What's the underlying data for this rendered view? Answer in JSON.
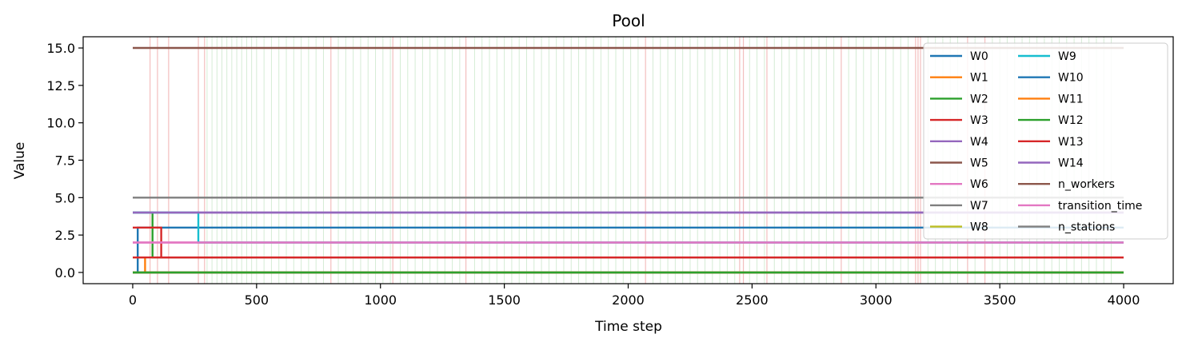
{
  "chart_data": {
    "type": "line",
    "title": "Pool",
    "xlabel": "Time step",
    "ylabel": "Value",
    "xlim": [
      -200,
      4200
    ],
    "ylim": [
      -0.75,
      15.75
    ],
    "xticks": [
      0,
      500,
      1000,
      1500,
      2000,
      2500,
      3000,
      3500,
      4000
    ],
    "yticks": [
      0.0,
      2.5,
      5.0,
      7.5,
      10.0,
      12.5,
      15.0
    ],
    "xtick_labels": [
      "0",
      "500",
      "1000",
      "1500",
      "2000",
      "2500",
      "3000",
      "3500",
      "4000"
    ],
    "ytick_labels": [
      "0.0",
      "2.5",
      "5.0",
      "7.5",
      "10.0",
      "12.5",
      "15.0"
    ],
    "grid": false,
    "legend_position": "top-right",
    "legend_columns": 2,
    "series": [
      {
        "name": "W0",
        "color": "#1f77b4",
        "x": [
          0,
          20,
          20,
          4000
        ],
        "y": [
          0,
          0,
          3,
          3
        ]
      },
      {
        "name": "W1",
        "color": "#ff7f0e",
        "x": [
          0,
          50,
          50,
          4000
        ],
        "y": [
          1,
          1,
          0,
          0
        ]
      },
      {
        "name": "W2",
        "color": "#2ca02c",
        "x": [
          0,
          80,
          80,
          4000
        ],
        "y": [
          4,
          4,
          1,
          1
        ]
      },
      {
        "name": "W3",
        "color": "#d62728",
        "x": [
          0,
          115,
          115,
          4000
        ],
        "y": [
          3,
          3,
          1,
          1
        ]
      },
      {
        "name": "W4",
        "color": "#9467bd",
        "x": [
          0,
          4000
        ],
        "y": [
          4,
          4
        ]
      },
      {
        "name": "W5",
        "color": "#8c564b",
        "x": [
          0,
          4000
        ],
        "y": [
          0,
          0
        ]
      },
      {
        "name": "W6",
        "color": "#e377c2",
        "x": [
          0,
          4000
        ],
        "y": [
          2,
          2
        ]
      },
      {
        "name": "W7",
        "color": "#7f7f7f",
        "x": [
          0,
          4000
        ],
        "y": [
          0,
          0
        ]
      },
      {
        "name": "W8",
        "color": "#bcbd22",
        "x": [
          0,
          4000
        ],
        "y": [
          0,
          0
        ]
      },
      {
        "name": "W9",
        "color": "#17becf",
        "x": [
          0,
          265,
          265,
          4000
        ],
        "y": [
          4,
          4,
          2,
          2
        ]
      },
      {
        "name": "W10",
        "color": "#1f77b4",
        "x": [
          0,
          4000
        ],
        "y": [
          0,
          0
        ]
      },
      {
        "name": "W11",
        "color": "#ff7f0e",
        "x": [
          0,
          4000
        ],
        "y": [
          0,
          0
        ]
      },
      {
        "name": "W12",
        "color": "#2ca02c",
        "x": [
          0,
          4000
        ],
        "y": [
          0,
          0
        ]
      },
      {
        "name": "W13",
        "color": "#d62728",
        "x": [
          0,
          4000
        ],
        "y": [
          1,
          1
        ]
      },
      {
        "name": "W14",
        "color": "#9467bd",
        "x": [
          0,
          4000
        ],
        "y": [
          4,
          4
        ]
      },
      {
        "name": "n_workers",
        "color": "#8c564b",
        "x": [
          0,
          4000
        ],
        "y": [
          15,
          15
        ]
      },
      {
        "name": "transition_time",
        "color": "#e377c2",
        "x": [
          0,
          4000
        ],
        "y": [
          2,
          2
        ]
      },
      {
        "name": "n_stations",
        "color": "#7f7f7f",
        "x": [
          0,
          4000
        ],
        "y": [
          5,
          5
        ]
      }
    ],
    "event_markers": {
      "red": {
        "color": "#d62728",
        "x": [
          70,
          100,
          145,
          265,
          290,
          800,
          1050,
          1345,
          2070,
          2450,
          2465,
          2560,
          2860,
          3160,
          3170,
          3180,
          3370,
          3440
        ]
      },
      "green": {
        "color": "#2ca02c",
        "x": [
          300,
          320,
          340,
          360,
          380,
          400,
          420,
          440,
          460,
          480,
          500,
          530,
          560,
          590,
          620,
          650,
          680,
          710,
          740,
          770,
          830,
          860,
          890,
          920,
          950,
          980,
          1010,
          1040,
          1080,
          1110,
          1140,
          1170,
          1200,
          1230,
          1260,
          1290,
          1320,
          1380,
          1410,
          1440,
          1470,
          1500,
          1530,
          1560,
          1590,
          1620,
          1650,
          1680,
          1710,
          1740,
          1770,
          1800,
          1830,
          1860,
          1890,
          1920,
          1950,
          1980,
          2010,
          2040,
          2100,
          2130,
          2160,
          2190,
          2220,
          2250,
          2280,
          2310,
          2340,
          2370,
          2400,
          2430,
          2490,
          2520,
          2550,
          2590,
          2620,
          2650,
          2680,
          2710,
          2740,
          2770,
          2800,
          2830,
          2890,
          2920,
          2950,
          2980,
          3010,
          3040,
          3070,
          3100,
          3130,
          3210,
          3240,
          3270,
          3300,
          3330,
          3400,
          3470,
          3500,
          3530,
          3560,
          3590,
          3620,
          3650,
          3680,
          3710,
          3740,
          3770,
          3800,
          3830,
          3860,
          3890,
          3920,
          3950
        ]
      }
    }
  }
}
